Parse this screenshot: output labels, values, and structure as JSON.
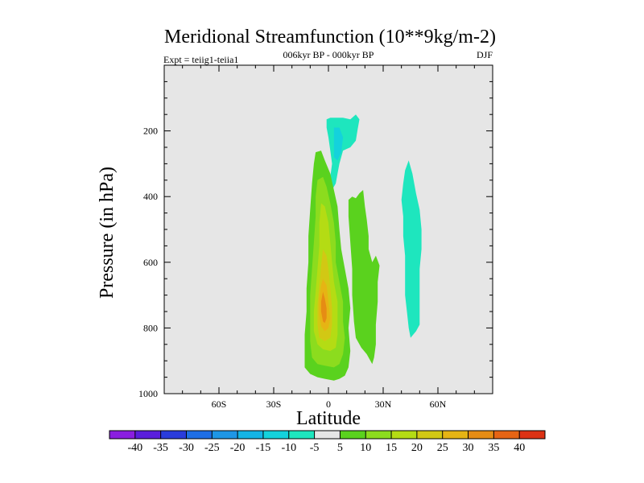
{
  "chart_data": {
    "type": "heatmap",
    "title": "Meridional Streamfunction (10**9kg/m-2)",
    "subtitle": "006kyr BP - 000kyr BP",
    "left_label": "Expt = teiig1-teiia1",
    "right_label": "DJF",
    "xlabel": "Latitude",
    "ylabel": "Pressure (in hPa)",
    "xlim": [
      -90,
      90
    ],
    "ylim": [
      1000,
      0
    ],
    "x_ticks": [
      -60,
      -30,
      0,
      30,
      60
    ],
    "x_tick_labels": [
      "60S",
      "30S",
      "0",
      "30N",
      "60N"
    ],
    "y_ticks": [
      200,
      400,
      600,
      800,
      1000
    ],
    "y_tick_labels": [
      "200",
      "400",
      "600",
      "800",
      "1000"
    ],
    "background_color": "#e6e6e6",
    "colorbar": {
      "levels": [
        -40,
        -35,
        -30,
        -25,
        -20,
        -15,
        -10,
        -5,
        5,
        10,
        15,
        20,
        25,
        30,
        35,
        40
      ],
      "labels": [
        "-40",
        "-35",
        "-30",
        "-25",
        "-20",
        "-15",
        "-10",
        "-5",
        "5",
        "10",
        "15",
        "20",
        "25",
        "30",
        "35",
        "40"
      ],
      "colors": [
        "#8a1ee0",
        "#5a1edc",
        "#2a3cdc",
        "#1e6ee6",
        "#1e96e6",
        "#14b4e6",
        "#14d2dc",
        "#1ee6be",
        "#e6e6e6",
        "#5ad21e",
        "#8cdc1e",
        "#b4dc14",
        "#d2c814",
        "#e6b414",
        "#e68c14",
        "#e66414",
        "#dc3214"
      ]
    },
    "regions": [
      {
        "name": "-10 to -5 upper cell",
        "level_range": [
          -10,
          -5
        ],
        "color": "#1ee6be",
        "points": [
          [
            -1,
            165
          ],
          [
            1,
            160
          ],
          [
            8,
            160
          ],
          [
            12,
            165
          ],
          [
            15,
            150
          ],
          [
            17,
            165
          ],
          [
            16,
            195
          ],
          [
            15,
            230
          ],
          [
            12,
            250
          ],
          [
            10,
            255
          ],
          [
            8,
            260
          ],
          [
            6,
            300
          ],
          [
            5,
            330
          ],
          [
            4,
            360
          ],
          [
            2,
            380
          ],
          [
            0,
            380
          ],
          [
            1,
            340
          ],
          [
            2,
            300
          ],
          [
            1,
            260
          ],
          [
            0,
            220
          ],
          [
            -1,
            190
          ]
        ]
      },
      {
        "name": "-15 to -10 core",
        "level_range": [
          -15,
          -10
        ],
        "color": "#14d2dc",
        "points": [
          [
            3,
            190
          ],
          [
            6,
            190
          ],
          [
            8,
            220
          ],
          [
            7,
            265
          ],
          [
            5,
            290
          ],
          [
            3,
            280
          ],
          [
            3,
            240
          ]
        ]
      },
      {
        "name": "-10 to -5 northern cell",
        "level_range": [
          -10,
          -5
        ],
        "color": "#1ee6be",
        "points": [
          [
            44,
            290
          ],
          [
            46,
            330
          ],
          [
            48,
            390
          ],
          [
            50,
            440
          ],
          [
            51,
            500
          ],
          [
            51,
            560
          ],
          [
            50,
            620
          ],
          [
            50,
            700
          ],
          [
            50,
            790
          ],
          [
            48,
            810
          ],
          [
            45,
            830
          ],
          [
            44,
            800
          ],
          [
            43,
            750
          ],
          [
            42,
            700
          ],
          [
            42,
            640
          ],
          [
            42,
            580
          ],
          [
            41,
            520
          ],
          [
            41,
            460
          ],
          [
            40,
            410
          ],
          [
            41,
            360
          ],
          [
            42,
            320
          ]
        ]
      },
      {
        "name": "5-10 main cell",
        "level_range": [
          5,
          10
        ],
        "color": "#5ad21e",
        "points": [
          [
            -7,
            265
          ],
          [
            -4,
            260
          ],
          [
            -2,
            290
          ],
          [
            1,
            330
          ],
          [
            3,
            380
          ],
          [
            5,
            430
          ],
          [
            6,
            500
          ],
          [
            7,
            560
          ],
          [
            9,
            620
          ],
          [
            11,
            680
          ],
          [
            12,
            740
          ],
          [
            11,
            800
          ],
          [
            12,
            870
          ],
          [
            11,
            920
          ],
          [
            9,
            945
          ],
          [
            6,
            955
          ],
          [
            3,
            960
          ],
          [
            -2,
            955
          ],
          [
            -6,
            950
          ],
          [
            -10,
            940
          ],
          [
            -13,
            920
          ],
          [
            -13,
            880
          ],
          [
            -13,
            820
          ],
          [
            -12,
            750
          ],
          [
            -12,
            680
          ],
          [
            -11,
            600
          ],
          [
            -11,
            520
          ],
          [
            -10,
            440
          ],
          [
            -9,
            360
          ],
          [
            -8,
            300
          ]
        ]
      },
      {
        "name": "5-10 second cell",
        "level_range": [
          5,
          10
        ],
        "color": "#5ad21e",
        "points": [
          [
            11,
            410
          ],
          [
            13,
            400
          ],
          [
            15,
            405
          ],
          [
            17,
            390
          ],
          [
            19,
            380
          ],
          [
            20,
            430
          ],
          [
            21,
            470
          ],
          [
            22,
            520
          ],
          [
            22,
            560
          ],
          [
            24,
            600
          ],
          [
            26,
            580
          ],
          [
            28,
            610
          ],
          [
            27,
            660
          ],
          [
            27,
            720
          ],
          [
            26,
            790
          ],
          [
            26,
            850
          ],
          [
            25,
            890
          ],
          [
            24,
            910
          ],
          [
            21,
            880
          ],
          [
            18,
            860
          ],
          [
            15,
            830
          ],
          [
            14,
            780
          ],
          [
            13,
            700
          ],
          [
            13,
            620
          ],
          [
            12,
            540
          ],
          [
            11,
            460
          ]
        ]
      },
      {
        "name": "10-15",
        "level_range": [
          10,
          15
        ],
        "color": "#8cdc1e",
        "points": [
          [
            -6,
            350
          ],
          [
            -3,
            340
          ],
          [
            -1,
            370
          ],
          [
            1,
            420
          ],
          [
            3,
            480
          ],
          [
            4,
            540
          ],
          [
            4,
            600
          ],
          [
            6,
            660
          ],
          [
            8,
            720
          ],
          [
            8,
            780
          ],
          [
            9,
            830
          ],
          [
            8,
            880
          ],
          [
            6,
            910
          ],
          [
            3,
            920
          ],
          [
            -2,
            915
          ],
          [
            -6,
            910
          ],
          [
            -9,
            890
          ],
          [
            -10,
            840
          ],
          [
            -10,
            770
          ],
          [
            -10,
            700
          ],
          [
            -9,
            620
          ],
          [
            -8,
            540
          ],
          [
            -7,
            460
          ],
          [
            -7,
            400
          ]
        ]
      },
      {
        "name": "15-20",
        "level_range": [
          15,
          20
        ],
        "color": "#b4dc14",
        "points": [
          [
            -4,
            420
          ],
          [
            -2,
            430
          ],
          [
            0,
            480
          ],
          [
            1,
            540
          ],
          [
            2,
            600
          ],
          [
            3,
            660
          ],
          [
            5,
            720
          ],
          [
            5,
            770
          ],
          [
            5,
            820
          ],
          [
            4,
            860
          ],
          [
            1,
            870
          ],
          [
            -3,
            865
          ],
          [
            -6,
            850
          ],
          [
            -8,
            810
          ],
          [
            -8,
            750
          ],
          [
            -7,
            690
          ],
          [
            -6,
            620
          ],
          [
            -5,
            550
          ],
          [
            -5,
            480
          ]
        ]
      },
      {
        "name": "20-25",
        "level_range": [
          20,
          25
        ],
        "color": "#d2c814",
        "points": [
          [
            -3,
            560
          ],
          [
            -1,
            580
          ],
          [
            0,
            620
          ],
          [
            1,
            680
          ],
          [
            2,
            740
          ],
          [
            2,
            790
          ],
          [
            1,
            830
          ],
          [
            -2,
            840
          ],
          [
            -5,
            830
          ],
          [
            -6,
            790
          ],
          [
            -6,
            730
          ],
          [
            -5,
            670
          ],
          [
            -4,
            610
          ]
        ]
      },
      {
        "name": "25-30",
        "level_range": [
          25,
          30
        ],
        "color": "#e6b414",
        "points": [
          [
            -3,
            650
          ],
          [
            -1,
            670
          ],
          [
            0,
            720
          ],
          [
            1,
            770
          ],
          [
            0,
            800
          ],
          [
            -2,
            810
          ],
          [
            -4,
            795
          ],
          [
            -5,
            760
          ],
          [
            -5,
            710
          ],
          [
            -4,
            670
          ]
        ]
      },
      {
        "name": "30-35",
        "level_range": [
          30,
          35
        ],
        "color": "#e68c14",
        "points": [
          [
            -3,
            690
          ],
          [
            -2,
            710
          ],
          [
            -1,
            740
          ],
          [
            -1,
            770
          ],
          [
            -2,
            785
          ],
          [
            -3,
            780
          ],
          [
            -4,
            750
          ],
          [
            -4,
            720
          ]
        ]
      }
    ]
  }
}
